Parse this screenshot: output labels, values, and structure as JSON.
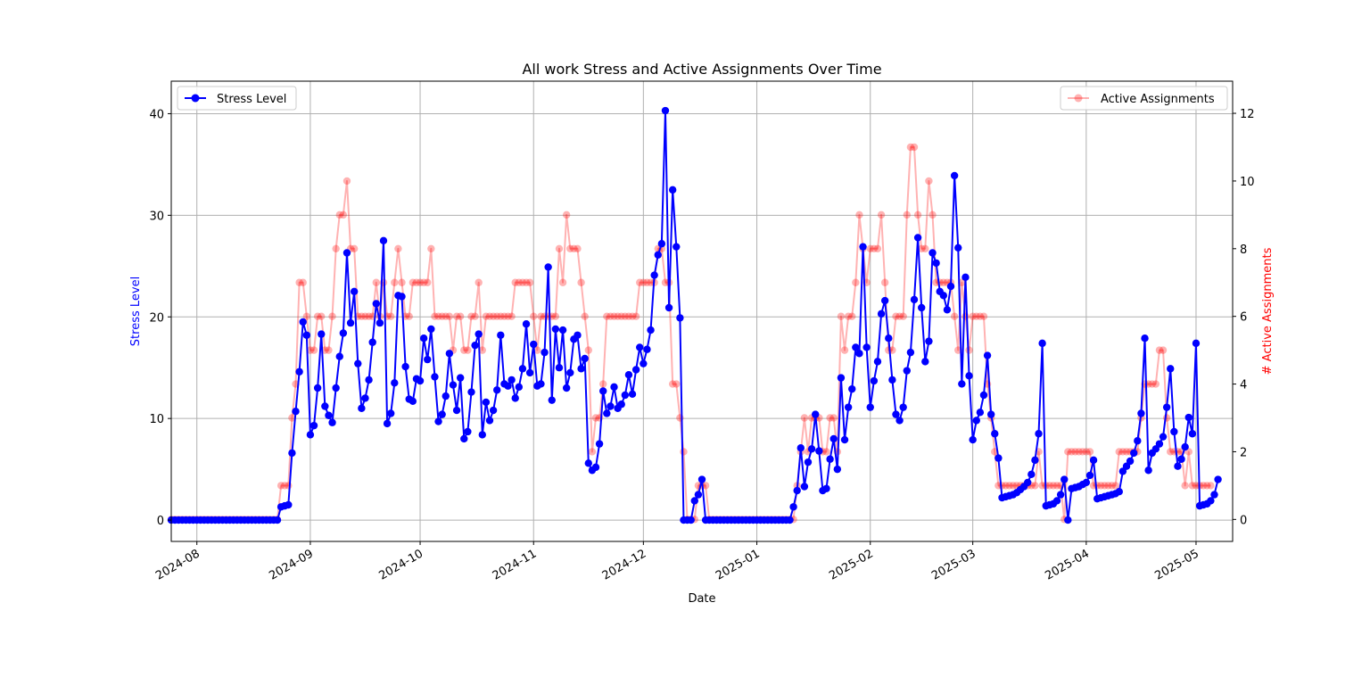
{
  "chart_data": {
    "type": "line",
    "title": "All work Stress and Active Assignments Over Time",
    "xlabel": "Date",
    "ylabel": "Stress Level",
    "y2label": "# Active Assignments",
    "xlim": [
      "2024-07-25",
      "2025-05-11"
    ],
    "ylim": [
      -2.1,
      43.2
    ],
    "y2lim": [
      -0.65,
      12.95
    ],
    "xticks": [
      {
        "date": "2024-08-01",
        "label": "2024-08"
      },
      {
        "date": "2024-09-01",
        "label": "2024-09"
      },
      {
        "date": "2024-10-01",
        "label": "2024-10"
      },
      {
        "date": "2024-11-01",
        "label": "2024-11"
      },
      {
        "date": "2024-12-01",
        "label": "2024-12"
      },
      {
        "date": "2025-01-01",
        "label": "2025-01"
      },
      {
        "date": "2025-02-01",
        "label": "2025-02"
      },
      {
        "date": "2025-03-01",
        "label": "2025-03"
      },
      {
        "date": "2025-04-01",
        "label": "2025-04"
      },
      {
        "date": "2025-05-01",
        "label": "2025-05"
      }
    ],
    "yticks": [
      "0",
      "10",
      "20",
      "30",
      "40"
    ],
    "y2ticks": [
      "0",
      "2",
      "4",
      "6",
      "8",
      "10",
      "12"
    ],
    "grid": true,
    "legend_left": {
      "placement": "upper-left",
      "label": "Stress Level"
    },
    "legend_right": {
      "placement": "upper-right",
      "label": "Active Assignments"
    },
    "colors": {
      "stress": "#0000ff",
      "assignments": "#ff0000"
    },
    "series": [
      {
        "name": "Stress Level",
        "axis": "left",
        "start_date": "2024-07-25",
        "values": [
          0,
          0,
          0,
          0,
          0,
          0,
          0,
          0,
          0,
          0,
          0,
          0,
          0,
          0,
          0,
          0,
          0,
          0,
          0,
          0,
          0,
          0,
          0,
          0,
          0,
          0,
          0,
          0,
          0,
          0,
          1.3,
          1.4,
          1.5,
          6.6,
          10.7,
          14.6,
          19.5,
          18.2,
          8.4,
          9.3,
          13.0,
          18.3,
          11.2,
          10.3,
          9.6,
          13.0,
          16.1,
          18.4,
          26.3,
          19.4,
          22.5,
          15.4,
          11.0,
          12.0,
          13.8,
          17.5,
          21.3,
          19.4,
          27.5,
          9.5,
          10.5,
          13.5,
          22.1,
          22.0,
          15.1,
          11.9,
          11.7,
          13.9,
          13.7,
          17.9,
          15.8,
          18.8,
          14.1,
          9.7,
          10.4,
          12.2,
          16.4,
          13.3,
          10.8,
          14.0,
          8.0,
          8.7,
          12.6,
          17.2,
          18.3,
          8.4,
          11.6,
          9.8,
          10.8,
          12.8,
          18.2,
          13.4,
          13.2,
          13.8,
          12.0,
          13.1,
          14.9,
          19.3,
          14.5,
          17.3,
          13.2,
          13.4,
          16.5,
          24.9,
          11.8,
          18.8,
          15.0,
          18.7,
          13.0,
          14.5,
          17.8,
          18.2,
          14.9,
          15.9,
          5.6,
          4.9,
          5.2,
          7.5,
          12.7,
          10.5,
          11.2,
          13.1,
          11.0,
          11.4,
          12.3,
          14.3,
          12.4,
          14.8,
          17.0,
          15.4,
          16.8,
          18.7,
          24.1,
          26.1,
          27.2,
          40.3,
          20.9,
          32.5,
          26.9,
          19.9,
          0,
          0,
          0,
          1.9,
          2.5,
          4.0,
          0,
          0,
          0,
          0,
          0,
          0,
          0,
          0,
          0,
          0,
          0,
          0,
          0,
          0,
          0,
          0,
          0,
          0,
          0,
          0,
          0,
          0,
          0,
          0,
          1.3,
          2.9,
          7.1,
          3.3,
          5.7,
          7.0,
          10.4,
          6.8,
          2.9,
          3.1,
          6.0,
          8.0,
          5.0,
          14.0,
          7.9,
          11.1,
          12.9,
          17.0,
          16.4,
          26.9,
          17.0,
          11.1,
          13.7,
          15.6,
          20.3,
          21.6,
          17.9,
          13.8,
          10.4,
          9.8,
          11.1,
          14.7,
          16.5,
          21.7,
          27.8,
          20.9,
          15.6,
          17.6,
          26.3,
          25.3,
          22.5,
          22.1,
          20.7,
          23.0,
          33.9,
          26.8,
          13.4,
          23.9,
          14.2,
          7.9,
          9.8,
          10.6,
          12.3,
          16.2,
          10.4,
          8.5,
          6.1,
          2.2,
          2.3,
          2.4,
          2.5,
          2.7,
          3.0,
          3.3,
          3.7,
          4.5,
          5.9,
          8.5,
          17.4,
          1.4,
          1.5,
          1.6,
          1.9,
          2.5,
          4.0,
          0,
          3.1,
          3.2,
          3.3,
          3.5,
          3.7,
          4.4,
          5.9,
          2.1,
          2.2,
          2.3,
          2.4,
          2.5,
          2.6,
          2.8,
          4.8,
          5.3,
          5.8,
          6.6,
          7.8,
          10.5,
          17.9,
          4.9,
          6.6,
          7.0,
          7.5,
          8.2,
          11.1,
          14.9,
          8.7,
          5.3,
          6.0,
          7.2,
          10.1,
          8.5,
          17.4,
          1.4,
          1.5,
          1.6,
          1.9,
          2.5,
          4.0
        ]
      },
      {
        "name": "Active Assignments",
        "axis": "right",
        "start_date": "2024-07-25",
        "values": [
          0,
          0,
          0,
          0,
          0,
          0,
          0,
          0,
          0,
          0,
          0,
          0,
          0,
          0,
          0,
          0,
          0,
          0,
          0,
          0,
          0,
          0,
          0,
          0,
          0,
          0,
          0,
          0,
          0,
          0,
          1,
          1,
          1,
          3,
          4,
          7,
          7,
          6,
          5,
          5,
          6,
          6,
          5,
          5,
          6,
          8,
          9,
          9,
          10,
          8,
          8,
          6,
          6,
          6,
          6,
          6,
          7,
          6,
          7,
          6,
          6,
          7,
          8,
          7,
          6,
          6,
          7,
          7,
          7,
          7,
          7,
          8,
          6,
          6,
          6,
          6,
          6,
          5,
          6,
          6,
          5,
          5,
          6,
          6,
          7,
          5,
          6,
          6,
          6,
          6,
          6,
          6,
          6,
          6,
          7,
          7,
          7,
          7,
          7,
          6,
          5,
          6,
          6,
          6,
          6,
          6,
          8,
          7,
          9,
          8,
          8,
          8,
          7,
          6,
          5,
          2,
          3,
          3,
          4,
          6,
          6,
          6,
          6,
          6,
          6,
          6,
          6,
          6,
          7,
          7,
          7,
          7,
          7,
          8,
          8,
          7,
          7,
          4,
          4,
          3,
          2,
          0,
          0,
          0,
          1,
          1,
          1,
          0,
          0,
          0,
          0,
          0,
          0,
          0,
          0,
          0,
          0,
          0,
          0,
          0,
          0,
          0,
          0,
          0,
          0,
          0,
          0,
          0,
          0,
          0,
          0,
          1,
          2,
          3,
          2,
          3,
          3,
          3,
          2,
          2,
          3,
          3,
          2,
          6,
          5,
          6,
          6,
          7,
          9,
          8,
          7,
          8,
          8,
          8,
          9,
          7,
          5,
          5,
          6,
          6,
          6,
          9,
          11,
          11,
          9,
          8,
          8,
          10,
          9,
          7,
          7,
          7,
          7,
          7,
          6,
          5,
          7,
          6,
          5,
          6,
          6,
          6,
          6,
          4,
          3,
          2,
          1,
          1,
          1,
          1,
          1,
          1,
          1,
          1,
          1,
          1,
          1,
          2,
          1,
          1,
          1,
          1,
          1,
          1,
          0,
          2,
          2,
          2,
          2,
          2,
          2,
          2,
          1,
          1,
          1,
          1,
          1,
          1,
          1,
          2,
          2,
          2,
          2,
          2,
          2,
          3,
          4,
          4,
          4,
          4,
          5,
          5,
          3,
          2,
          2,
          2,
          2,
          1,
          2,
          1,
          1,
          1,
          1,
          1,
          1
        ]
      }
    ]
  }
}
